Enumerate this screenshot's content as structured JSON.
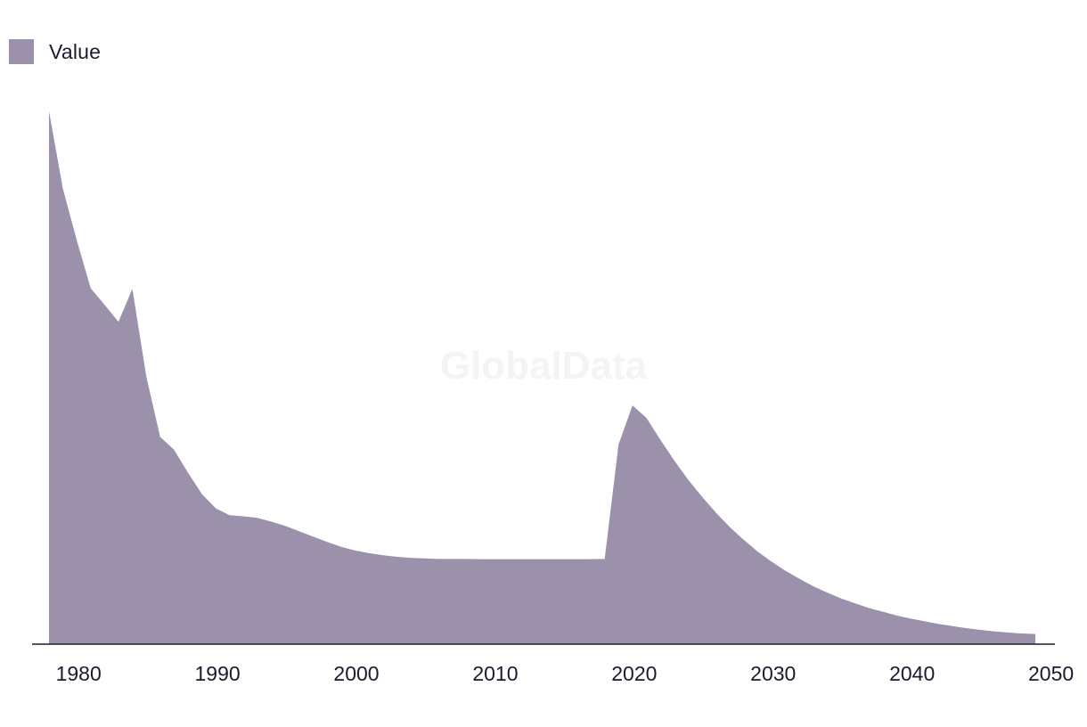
{
  "legend": {
    "label": "Value",
    "color": "#9b91aa"
  },
  "watermark": "GlobalData",
  "chart_data": {
    "type": "area",
    "title": "",
    "xlabel": "",
    "ylabel": "",
    "series": [
      {
        "name": "Value",
        "color": "#9b91aa",
        "x": [
          1978,
          1979,
          1980,
          1981,
          1982,
          1983,
          1984,
          1985,
          1986,
          1987,
          1988,
          1989,
          1990,
          1991,
          1992,
          1993,
          1994,
          1995,
          1996,
          1997,
          1998,
          1999,
          2000,
          2001,
          2002,
          2003,
          2004,
          2005,
          2006,
          2007,
          2008,
          2009,
          2010,
          2011,
          2012,
          2013,
          2014,
          2015,
          2016,
          2017,
          2018,
          2019,
          2020,
          2021,
          2022,
          2023,
          2024,
          2025,
          2026,
          2027,
          2028,
          2029,
          2030,
          2031,
          2032,
          2033,
          2034,
          2035,
          2036,
          2037,
          2038,
          2039,
          2040,
          2041,
          2042,
          2043,
          2044,
          2045,
          2046,
          2047,
          2048,
          2049
        ],
        "values": [
          100,
          85.5,
          75.8,
          66.8,
          63.7,
          60.5,
          66.7,
          50.3,
          38.9,
          36.5,
          32.2,
          28.2,
          25.5,
          24.2,
          24.0,
          23.7,
          23.0,
          22.2,
          21.2,
          20.2,
          19.2,
          18.3,
          17.6,
          17.1,
          16.7,
          16.4,
          16.2,
          16.1,
          16.0,
          16.0,
          16.0,
          15.95,
          15.95,
          15.95,
          15.95,
          15.95,
          15.95,
          15.95,
          15.95,
          15.95,
          16.0,
          37.5,
          44.8,
          42.5,
          38.4,
          34.5,
          30.9,
          27.7,
          24.7,
          22.0,
          19.6,
          17.4,
          15.5,
          13.8,
          12.3,
          10.9,
          9.7,
          8.6,
          7.7,
          6.8,
          6.1,
          5.4,
          4.8,
          4.3,
          3.8,
          3.4,
          3.0,
          2.7,
          2.4,
          2.2,
          2.0,
          1.9
        ]
      }
    ],
    "x_ticks": [
      1980,
      1990,
      2000,
      2010,
      2020,
      2030,
      2040,
      2050
    ],
    "xlim": [
      1978,
      2050
    ],
    "ylim": [
      0,
      100
    ],
    "grid": false,
    "legend_position": "top-left"
  }
}
